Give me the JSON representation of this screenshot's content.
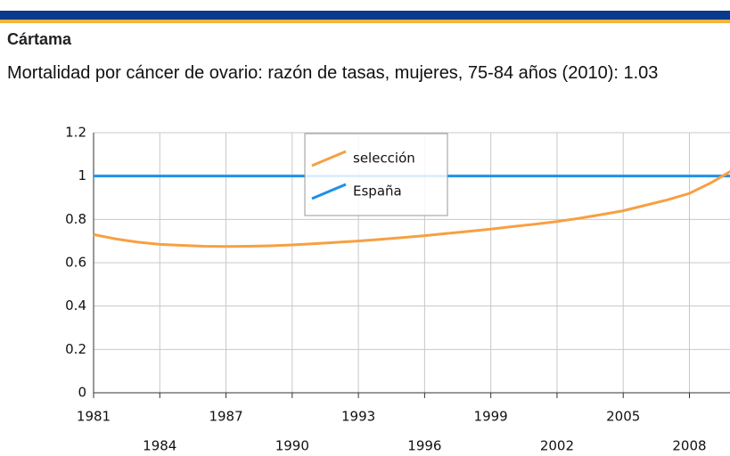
{
  "chart_data": {
    "type": "line",
    "title": "Cártama",
    "subtitle": "Mortalidad por cáncer de ovario: razón de tasas, mujeres, 75-84 años (2010): 1.03",
    "x": [
      1981,
      1982,
      1983,
      1984,
      1985,
      1986,
      1987,
      1988,
      1989,
      1990,
      1991,
      1992,
      1993,
      1994,
      1995,
      1996,
      1997,
      1998,
      1999,
      2000,
      2001,
      2002,
      2003,
      2004,
      2005,
      2006,
      2007,
      2008,
      2009,
      2010
    ],
    "series": [
      {
        "name": "selección",
        "color": "#f7a042",
        "values": [
          0.73,
          0.71,
          0.695,
          0.685,
          0.68,
          0.676,
          0.675,
          0.676,
          0.678,
          0.682,
          0.688,
          0.694,
          0.7,
          0.708,
          0.716,
          0.725,
          0.735,
          0.745,
          0.755,
          0.767,
          0.778,
          0.79,
          0.805,
          0.822,
          0.84,
          0.865,
          0.89,
          0.92,
          0.97,
          1.03
        ]
      },
      {
        "name": "España",
        "color": "#1e90e8",
        "values": [
          1,
          1,
          1,
          1,
          1,
          1,
          1,
          1,
          1,
          1,
          1,
          1,
          1,
          1,
          1,
          1,
          1,
          1,
          1,
          1,
          1,
          1,
          1,
          1,
          1,
          1,
          1,
          1,
          1,
          1
        ]
      }
    ],
    "xlim": [
      1981,
      2010
    ],
    "xticks": [
      1981,
      1984,
      1987,
      1990,
      1993,
      1996,
      1999,
      2002,
      2005,
      2008
    ],
    "ylim": [
      0,
      1.2
    ],
    "yticks": [
      0,
      0.2,
      0.4,
      0.6,
      0.8,
      1,
      1.2
    ],
    "grid": true
  }
}
